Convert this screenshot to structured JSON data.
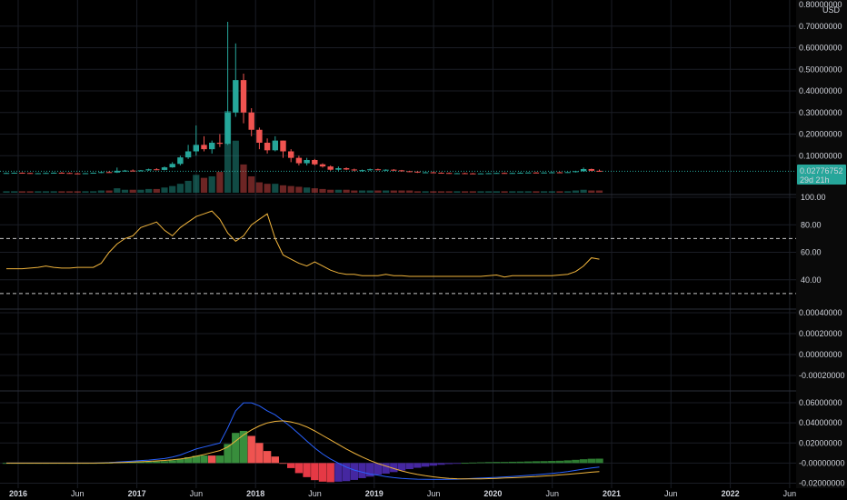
{
  "currency": "USD",
  "price_label": "0.02776752",
  "countdown_label": "29d 21h",
  "colors": {
    "up": "#26a69a",
    "down": "#ef5350",
    "rsi": "#f0b43c",
    "macd": "#2962ff",
    "signal": "#f0b43c",
    "hist_up": "#388e3c",
    "hist_up_fading": "#2e7d32",
    "hist_down": "#e53945",
    "hist_down_rising": "#4527a0",
    "axis_bg": "#0a0a0a",
    "badge": "#26a69a"
  },
  "time_axis": [
    {
      "label": "2016",
      "year": true
    },
    {
      "label": "Jun",
      "year": false
    },
    {
      "label": "2017",
      "year": true
    },
    {
      "label": "Jun",
      "year": false
    },
    {
      "label": "2018",
      "year": true
    },
    {
      "label": "Jun",
      "year": false
    },
    {
      "label": "2019",
      "year": true
    },
    {
      "label": "Jun",
      "year": false
    },
    {
      "label": "2020",
      "year": true
    },
    {
      "label": "Jun",
      "year": false
    },
    {
      "label": "2021",
      "year": true
    },
    {
      "label": "Jun",
      "year": false
    },
    {
      "label": "2022",
      "year": true
    },
    {
      "label": "Jun",
      "year": false
    }
  ],
  "chart_data": [
    {
      "type": "candlestick",
      "pane": "price",
      "interval": "1M",
      "ylim": [
        0,
        0.8
      ],
      "y_ticks": [
        "0.10000000",
        "0.20000000",
        "0.30000000",
        "0.40000000",
        "0.50000000",
        "0.60000000",
        "0.70000000"
      ],
      "top_tick": "0.80000000",
      "last_price": 0.02776752,
      "ohlc": [
        [
          0.02,
          0.022,
          0.018,
          0.02
        ],
        [
          0.02,
          0.022,
          0.018,
          0.021
        ],
        [
          0.021,
          0.023,
          0.019,
          0.02
        ],
        [
          0.02,
          0.021,
          0.017,
          0.018
        ],
        [
          0.018,
          0.02,
          0.016,
          0.019
        ],
        [
          0.019,
          0.022,
          0.017,
          0.02
        ],
        [
          0.02,
          0.023,
          0.018,
          0.021
        ],
        [
          0.021,
          0.024,
          0.019,
          0.02
        ],
        [
          0.02,
          0.022,
          0.017,
          0.018
        ],
        [
          0.018,
          0.02,
          0.015,
          0.017
        ],
        [
          0.017,
          0.02,
          0.015,
          0.019
        ],
        [
          0.019,
          0.022,
          0.017,
          0.021
        ],
        [
          0.021,
          0.026,
          0.019,
          0.024
        ],
        [
          0.024,
          0.028,
          0.021,
          0.022
        ],
        [
          0.022,
          0.045,
          0.02,
          0.03
        ],
        [
          0.03,
          0.034,
          0.026,
          0.031
        ],
        [
          0.031,
          0.036,
          0.027,
          0.03
        ],
        [
          0.03,
          0.034,
          0.027,
          0.032
        ],
        [
          0.032,
          0.04,
          0.03,
          0.037
        ],
        [
          0.037,
          0.042,
          0.033,
          0.034
        ],
        [
          0.034,
          0.05,
          0.032,
          0.046
        ],
        [
          0.046,
          0.07,
          0.044,
          0.062
        ],
        [
          0.062,
          0.1,
          0.055,
          0.092
        ],
        [
          0.092,
          0.15,
          0.085,
          0.12
        ],
        [
          0.12,
          0.24,
          0.1,
          0.15
        ],
        [
          0.15,
          0.19,
          0.12,
          0.13
        ],
        [
          0.13,
          0.17,
          0.11,
          0.16
        ],
        [
          0.16,
          0.2,
          0.14,
          0.155
        ],
        [
          0.155,
          0.72,
          0.15,
          0.3
        ],
        [
          0.3,
          0.62,
          0.28,
          0.45
        ],
        [
          0.45,
          0.48,
          0.25,
          0.3
        ],
        [
          0.3,
          0.32,
          0.19,
          0.22
        ],
        [
          0.22,
          0.23,
          0.13,
          0.16
        ],
        [
          0.16,
          0.18,
          0.11,
          0.125
        ],
        [
          0.125,
          0.19,
          0.12,
          0.17
        ],
        [
          0.17,
          0.17,
          0.09,
          0.12
        ],
        [
          0.12,
          0.13,
          0.07,
          0.09
        ],
        [
          0.09,
          0.1,
          0.055,
          0.065
        ],
        [
          0.065,
          0.09,
          0.055,
          0.08
        ],
        [
          0.08,
          0.085,
          0.055,
          0.06
        ],
        [
          0.06,
          0.065,
          0.045,
          0.05
        ],
        [
          0.05,
          0.055,
          0.03,
          0.035
        ],
        [
          0.035,
          0.05,
          0.03,
          0.042
        ],
        [
          0.042,
          0.046,
          0.033,
          0.036
        ],
        [
          0.036,
          0.04,
          0.028,
          0.032
        ],
        [
          0.032,
          0.036,
          0.026,
          0.033
        ],
        [
          0.033,
          0.04,
          0.03,
          0.037
        ],
        [
          0.037,
          0.04,
          0.032,
          0.034
        ],
        [
          0.034,
          0.037,
          0.03,
          0.035
        ],
        [
          0.035,
          0.038,
          0.03,
          0.032
        ],
        [
          0.032,
          0.034,
          0.026,
          0.028
        ],
        [
          0.028,
          0.03,
          0.024,
          0.026
        ],
        [
          0.026,
          0.028,
          0.02,
          0.022
        ],
        [
          0.022,
          0.025,
          0.019,
          0.023
        ],
        [
          0.023,
          0.026,
          0.02,
          0.021
        ],
        [
          0.021,
          0.023,
          0.018,
          0.02
        ],
        [
          0.02,
          0.022,
          0.017,
          0.018
        ],
        [
          0.018,
          0.02,
          0.016,
          0.019
        ],
        [
          0.019,
          0.021,
          0.017,
          0.018
        ],
        [
          0.018,
          0.02,
          0.016,
          0.017
        ],
        [
          0.017,
          0.019,
          0.015,
          0.018
        ],
        [
          0.018,
          0.02,
          0.016,
          0.019
        ],
        [
          0.019,
          0.021,
          0.017,
          0.02
        ],
        [
          0.02,
          0.022,
          0.018,
          0.019
        ],
        [
          0.019,
          0.021,
          0.017,
          0.02
        ],
        [
          0.02,
          0.023,
          0.019,
          0.021
        ],
        [
          0.021,
          0.023,
          0.019,
          0.022
        ],
        [
          0.022,
          0.024,
          0.02,
          0.021
        ],
        [
          0.021,
          0.023,
          0.019,
          0.022
        ],
        [
          0.022,
          0.025,
          0.02,
          0.023
        ],
        [
          0.023,
          0.026,
          0.021,
          0.022
        ],
        [
          0.022,
          0.024,
          0.02,
          0.024
        ],
        [
          0.024,
          0.03,
          0.022,
          0.028
        ],
        [
          0.028,
          0.045,
          0.026,
          0.038
        ],
        [
          0.038,
          0.04,
          0.028,
          0.03
        ],
        [
          0.03,
          0.036,
          0.027,
          0.0278
        ]
      ]
    },
    {
      "type": "bar",
      "pane": "volume",
      "volume": [
        2,
        2,
        2,
        2,
        2,
        2,
        2,
        2,
        2,
        2,
        2,
        2,
        3,
        3,
        6,
        4,
        4,
        4,
        5,
        5,
        7,
        9,
        12,
        16,
        24,
        20,
        22,
        28,
        110,
        70,
        38,
        22,
        14,
        12,
        12,
        10,
        9,
        8,
        7,
        6,
        5,
        4,
        4,
        4,
        3,
        3,
        3,
        3,
        3,
        3,
        3,
        3,
        2,
        2,
        2,
        2,
        2,
        2,
        2,
        2,
        2,
        2,
        2,
        2,
        2,
        2,
        2,
        2,
        2,
        2,
        2,
        2,
        3,
        4,
        3,
        3
      ]
    },
    {
      "type": "line",
      "pane": "rsi",
      "ylim": [
        20,
        100
      ],
      "y_ticks": [
        "40.00",
        "60.00",
        "80.00",
        "100.00"
      ],
      "bands": [
        70,
        30
      ],
      "values": [
        48,
        48,
        48,
        48.5,
        49,
        50,
        49,
        48.5,
        48.5,
        49,
        49,
        49,
        52,
        60,
        66,
        70,
        72,
        78,
        80,
        82,
        76,
        72,
        78,
        82,
        86,
        88,
        90,
        84,
        74,
        68,
        72,
        80,
        84,
        88,
        70,
        58,
        55,
        52,
        50,
        53,
        50,
        47,
        45,
        44,
        44,
        43,
        43,
        43,
        44,
        43,
        43,
        42.5,
        42.5,
        42.5,
        42.5,
        42.5,
        42.5,
        42.5,
        42.5,
        42.5,
        42.5,
        43,
        43.5,
        42,
        43,
        43,
        43,
        43,
        43,
        43,
        43.5,
        44,
        46,
        50,
        56,
        55
      ]
    },
    {
      "type": "line",
      "pane": "indicator",
      "y_ticks": [
        "0.00040000",
        "0.00020000",
        "0.00000000",
        "-0.00020000"
      ],
      "values": []
    },
    {
      "type": "line",
      "pane": "macd",
      "ylim": [
        -0.025,
        0.07
      ],
      "y_ticks": [
        "0.06000000",
        "0.04000000",
        "0.02000000",
        "-0.00000000",
        "-0.02000000"
      ],
      "macd": [
        0,
        0,
        0,
        0,
        0,
        0,
        0,
        0,
        0,
        0,
        0,
        0,
        0.0002,
        0.0005,
        0.001,
        0.0015,
        0.002,
        0.0025,
        0.003,
        0.0038,
        0.0045,
        0.006,
        0.008,
        0.011,
        0.014,
        0.016,
        0.018,
        0.02,
        0.035,
        0.052,
        0.06,
        0.06,
        0.057,
        0.052,
        0.048,
        0.042,
        0.036,
        0.029,
        0.022,
        0.015,
        0.009,
        0.004,
        0.0,
        -0.004,
        -0.007,
        -0.009,
        -0.011,
        -0.012,
        -0.0135,
        -0.0145,
        -0.0152,
        -0.0157,
        -0.016,
        -0.0162,
        -0.0163,
        -0.0163,
        -0.0162,
        -0.016,
        -0.0157,
        -0.0153,
        -0.015,
        -0.0146,
        -0.0142,
        -0.0138,
        -0.0133,
        -0.0128,
        -0.0122,
        -0.0116,
        -0.011,
        -0.0103,
        -0.0095,
        -0.0085,
        -0.0073,
        -0.006,
        -0.0048,
        -0.004
      ],
      "signal": [
        0,
        0,
        0,
        0,
        0,
        0,
        0,
        0,
        0,
        0,
        0,
        0,
        0.0001,
        0.0002,
        0.0004,
        0.0007,
        0.001,
        0.0013,
        0.0017,
        0.0021,
        0.0026,
        0.0032,
        0.004,
        0.0052,
        0.0068,
        0.0085,
        0.0105,
        0.0125,
        0.016,
        0.022,
        0.028,
        0.033,
        0.037,
        0.04,
        0.0415,
        0.042,
        0.041,
        0.039,
        0.036,
        0.032,
        0.0275,
        0.023,
        0.0185,
        0.014,
        0.0098,
        0.006,
        0.0025,
        -0.0005,
        -0.003,
        -0.0055,
        -0.0078,
        -0.0097,
        -0.0113,
        -0.0126,
        -0.0137,
        -0.0146,
        -0.0152,
        -0.0156,
        -0.0158,
        -0.0158,
        -0.0157,
        -0.0155,
        -0.0152,
        -0.0149,
        -0.0146,
        -0.0142,
        -0.0138,
        -0.0134,
        -0.0129,
        -0.0124,
        -0.0118,
        -0.0112,
        -0.0105,
        -0.0098,
        -0.0091,
        -0.0084
      ]
    }
  ]
}
